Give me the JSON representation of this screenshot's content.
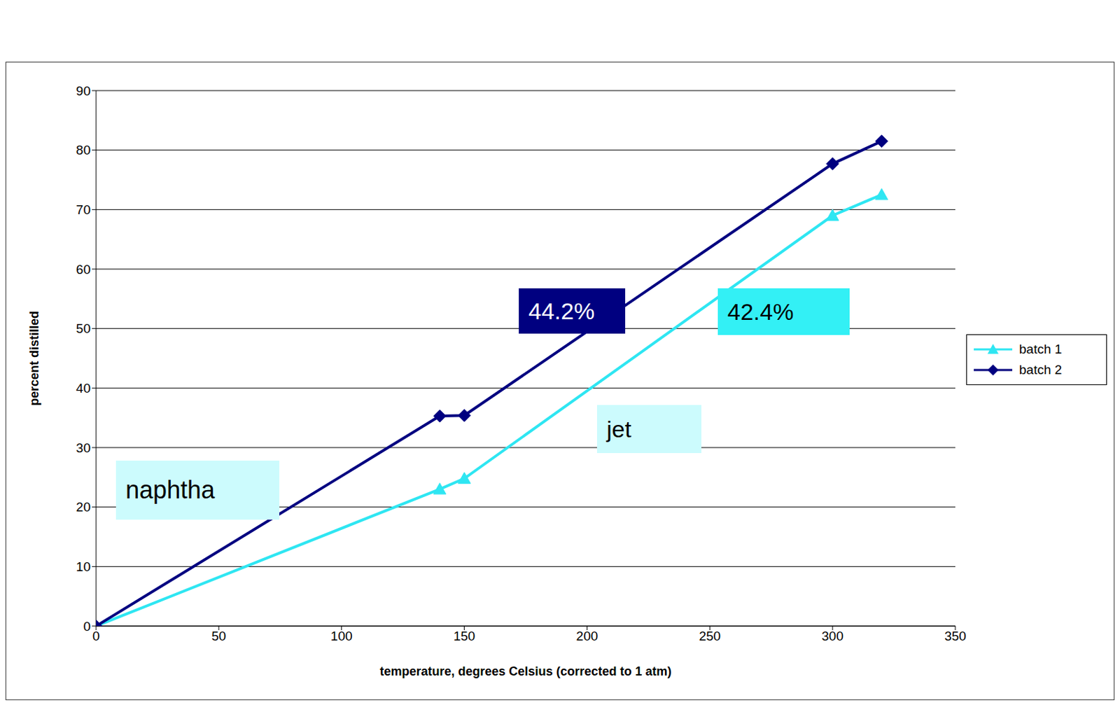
{
  "chart_data": {
    "type": "line",
    "x_label": "temperature, degrees Celsius (corrected to 1 atm)",
    "y_label": "percent distilled",
    "x": [
      0,
      140,
      150,
      300,
      320
    ],
    "series": [
      {
        "name": "batch 1",
        "color": "#2ee6f2",
        "marker": "triangle",
        "values": [
          0,
          23,
          24.8,
          69,
          72.5
        ]
      },
      {
        "name": "batch 2",
        "color": "#000080",
        "marker": "diamond",
        "values": [
          0,
          35.3,
          35.4,
          77.7,
          81.5
        ]
      }
    ],
    "xlim": [
      0,
      350
    ],
    "xticks": [
      0,
      50,
      100,
      150,
      200,
      250,
      300,
      350
    ],
    "ylim": [
      0,
      90
    ],
    "yticks": [
      0,
      10,
      20,
      30,
      40,
      50,
      60,
      70,
      80,
      90
    ],
    "grid": true,
    "legend": "right",
    "annotations": [
      "44.2%",
      "42.4%",
      "jet",
      "naphtha"
    ]
  }
}
